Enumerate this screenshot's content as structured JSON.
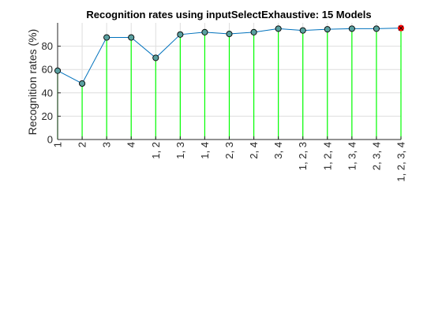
{
  "chart_data": {
    "type": "line",
    "title": "Recognition rates using inputSelectExhaustive: 15 Models",
    "xlabel": "",
    "ylabel": "Recognition rates (%)",
    "categories": [
      "1",
      "2",
      "3",
      "4",
      "1, 2",
      "1, 3",
      "1, 4",
      "2, 3",
      "2, 4",
      "3, 4",
      "1, 2, 3",
      "1, 2, 4",
      "1, 3, 4",
      "2, 3, 4",
      "1, 2, 3, 4"
    ],
    "series": [
      {
        "values": [
          59,
          48,
          87.5,
          87.5,
          70,
          90,
          92,
          90.5,
          92,
          95,
          93.5,
          94.5,
          95,
          95,
          95.5
        ]
      }
    ],
    "ylim": [
      0,
      100
    ],
    "yticks": [
      0,
      20,
      40,
      60,
      80
    ],
    "grid": true,
    "highlight_index": 14,
    "colors": {
      "line": "#0072BD",
      "stem": "#00FF00",
      "marker_edge": "#000000",
      "marker_fill": "#5AA0A0",
      "highlight_marker": "#FF0000",
      "grid": "#DEDEDE",
      "axis": "#262626"
    }
  }
}
